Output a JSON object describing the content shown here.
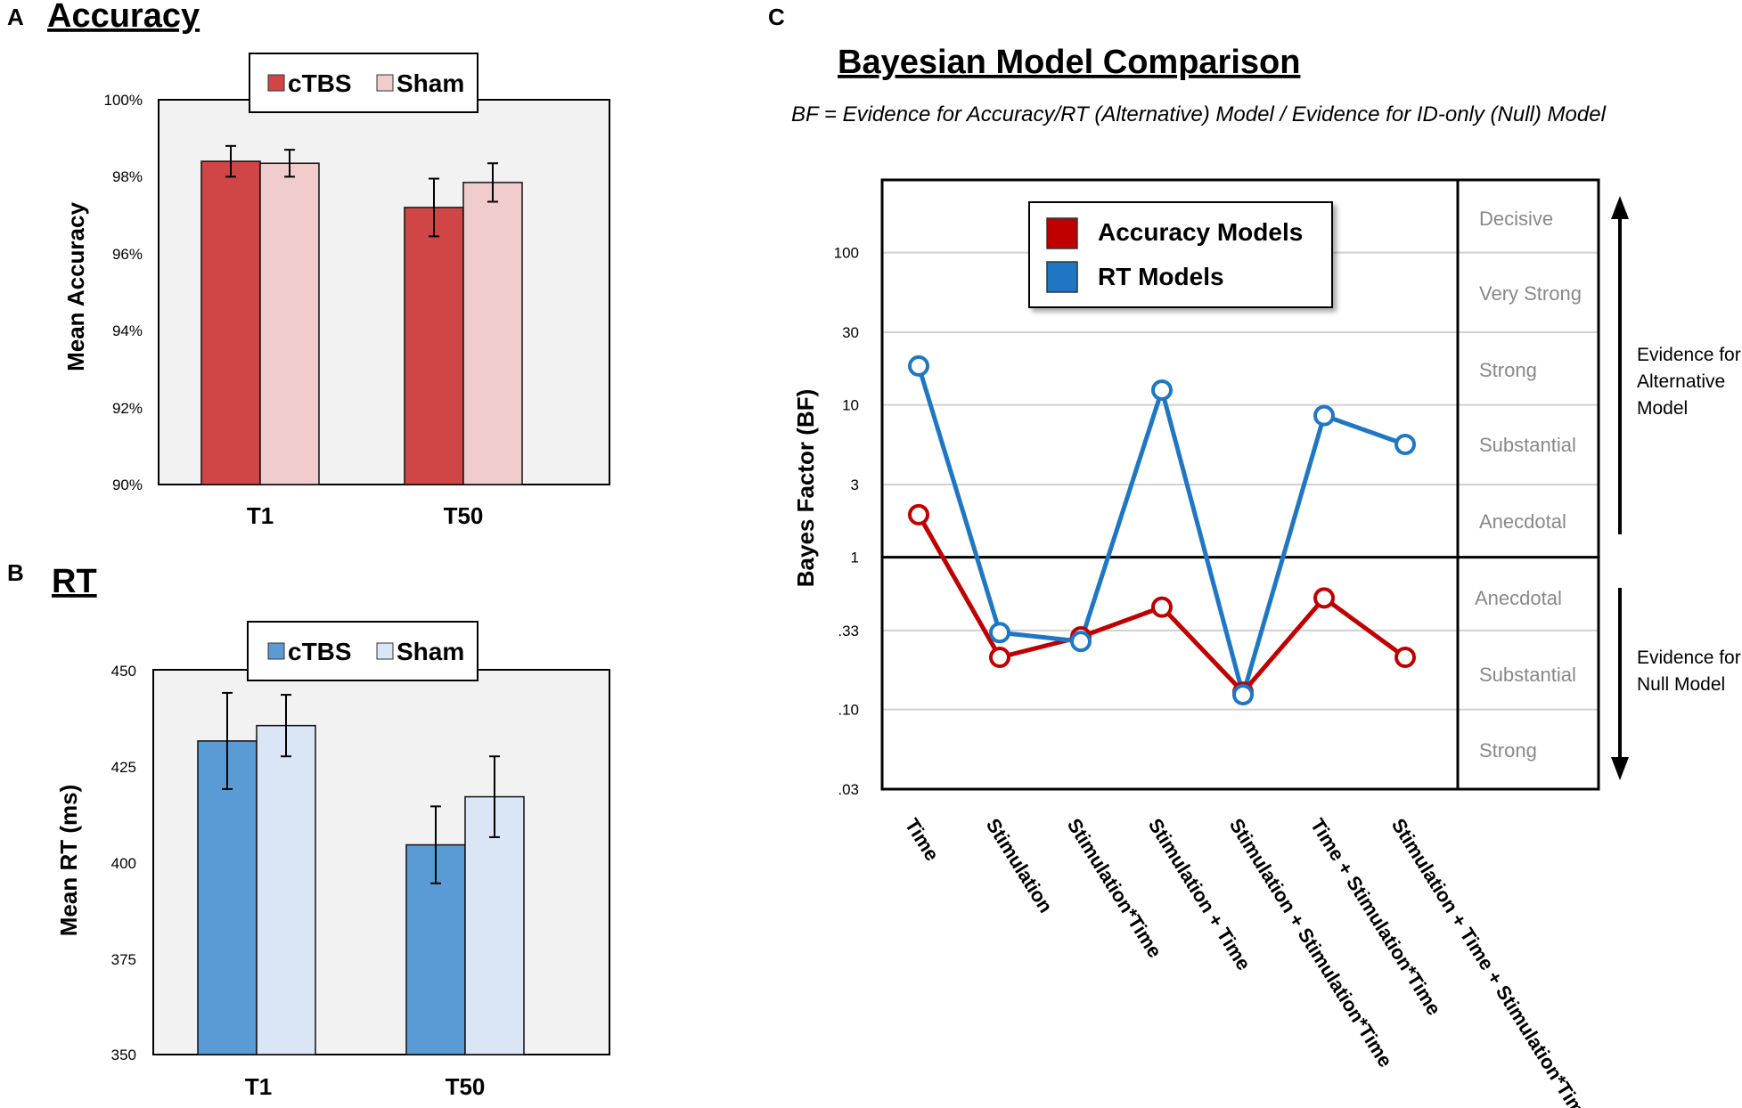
{
  "panel_a": {
    "letter": "A",
    "title": "Accuracy",
    "legend": [
      "cTBS",
      "Sham"
    ],
    "colors": {
      "cTBS": "#d04545",
      "Sham": "#f0cccc"
    },
    "ylabel": "Mean Accuracy",
    "yticks": [
      "100%",
      "98%",
      "96%",
      "94%",
      "92%",
      "90%"
    ]
  },
  "panel_b": {
    "letter": "B",
    "title": "RT",
    "legend": [
      "cTBS",
      "Sham"
    ],
    "colors": {
      "cTBS": "#5b9bd5",
      "Sham": "#dae5f5"
    },
    "ylabel": "Mean RT (ms)",
    "yticks": [
      "450",
      "425",
      "400",
      "375",
      "350"
    ]
  },
  "panel_c": {
    "letter": "C",
    "title": "Bayesian Model Comparison",
    "subtitle": "BF = Evidence for Accuracy/RT (Alternative) Model / Evidence for ID-only (Null) Model",
    "ylabel": "Bayes Factor (BF)",
    "yticks": [
      "100",
      "30",
      "10",
      "3",
      "1",
      ".33",
      ".10",
      ".03"
    ],
    "legend": [
      "Accuracy Models",
      "RT Models"
    ],
    "colors": {
      "Accuracy Models": "#c00000",
      "RT Models": "#1f77c4"
    },
    "evidence_upper": [
      "Decisive",
      "Very Strong",
      "Strong",
      "Substantial",
      "Anecdotal"
    ],
    "evidence_lower": [
      "Anecdotal",
      "Substantial",
      "Strong"
    ],
    "side_upper": [
      "Evidence for",
      "Alternative",
      "Model"
    ],
    "side_lower": [
      "Evidence for",
      "Null Model"
    ]
  },
  "chart_data": [
    {
      "type": "bar",
      "title": "Accuracy",
      "xlabel": "",
      "ylabel": "Mean Accuracy",
      "categories": [
        "T1",
        "T50"
      ],
      "ylim": [
        90,
        100
      ],
      "series": [
        {
          "name": "cTBS",
          "values": [
            98.4,
            97.2
          ],
          "errors": [
            0.4,
            0.75
          ]
        },
        {
          "name": "Sham",
          "values": [
            98.35,
            97.85
          ],
          "errors": [
            0.35,
            0.5
          ]
        }
      ]
    },
    {
      "type": "bar",
      "title": "RT",
      "xlabel": "",
      "ylabel": "Mean RT (ms)",
      "categories": [
        "T1",
        "T50"
      ],
      "ylim": [
        350,
        450
      ],
      "series": [
        {
          "name": "cTBS",
          "values": [
            431.5,
            404.5
          ],
          "errors": [
            12.5,
            10
          ]
        },
        {
          "name": "Sham",
          "values": [
            435.5,
            417
          ],
          "errors": [
            8,
            10.5
          ]
        }
      ]
    },
    {
      "type": "line",
      "title": "Bayesian Model Comparison",
      "xlabel": "",
      "ylabel": "Bayes Factor (BF)",
      "yscale": "log",
      "ylim": [
        0.03,
        300
      ],
      "categories": [
        "Time",
        "Stimulation",
        "Stimulation*Time",
        "Stimulation + Time",
        "Stimulation + Stimulation*Time",
        "Time + Stimulation*Time",
        "Stimulation + Time + Stimulation*Time"
      ],
      "series": [
        {
          "name": "Accuracy Models",
          "values": [
            1.9,
            0.22,
            0.3,
            0.47,
            0.13,
            0.54,
            0.22
          ]
        },
        {
          "name": "RT Models",
          "values": [
            18,
            0.32,
            0.28,
            12.5,
            0.125,
            8.5,
            5.5
          ]
        }
      ]
    }
  ]
}
